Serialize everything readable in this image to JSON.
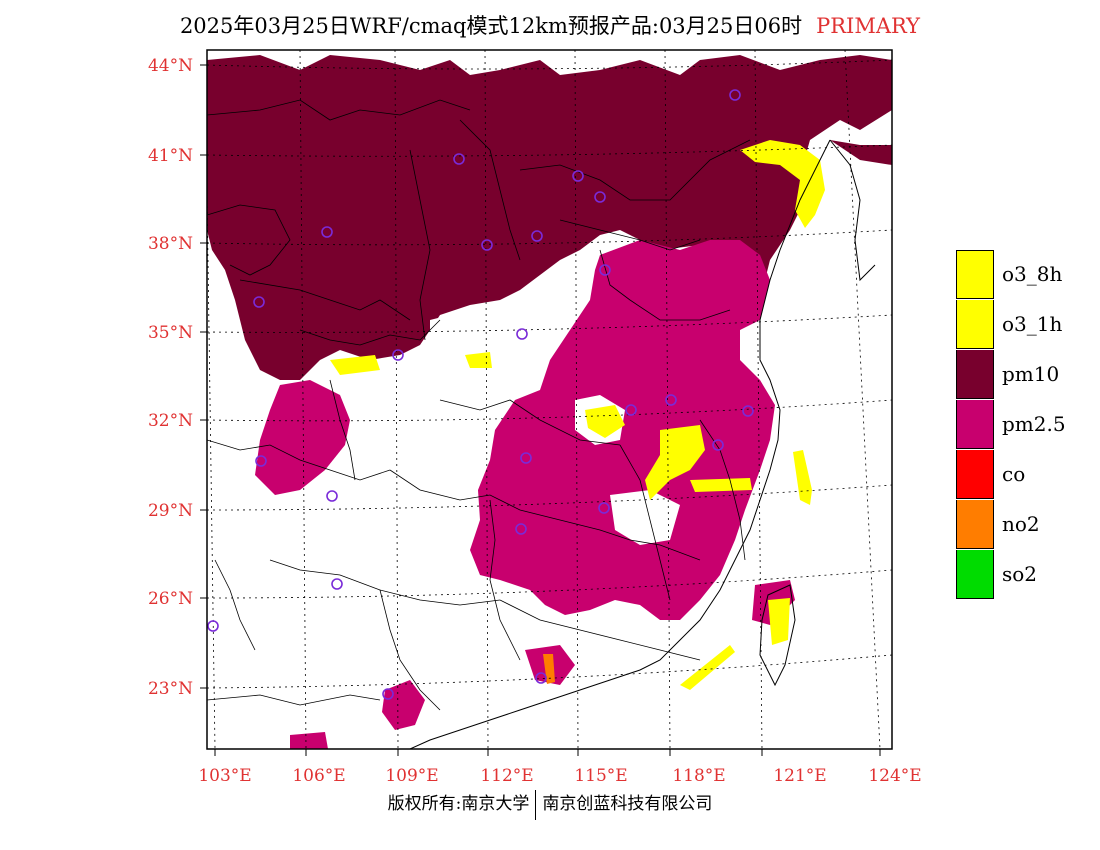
{
  "title": {
    "text": "2025年03月25日WRF/cmaq模式12km预报产品:03月25日06时",
    "tag": "PRIMARY"
  },
  "axes": {
    "x_ticks": [
      "103°E",
      "106°E",
      "109°E",
      "112°E",
      "115°E",
      "118°E",
      "121°E",
      "124°E"
    ],
    "y_ticks": [
      "44°N",
      "41°N",
      "38°N",
      "35°N",
      "32°N",
      "29°N",
      "26°N",
      "23°N"
    ]
  },
  "legend": [
    {
      "label": "o3_8h",
      "color": "#ffff00"
    },
    {
      "label": "o3_1h",
      "color": "#ffff00"
    },
    {
      "label": "pm10",
      "color": "#78002d"
    },
    {
      "label": "pm2.5",
      "color": "#c8006e"
    },
    {
      "label": "co",
      "color": "#ff0000"
    },
    {
      "label": "no2",
      "color": "#ff7d00"
    },
    {
      "label": "so2",
      "color": "#00dc00"
    }
  ],
  "footer": {
    "left": "版权所有:南京大学",
    "right": "南京创蓝科技有限公司"
  }
}
